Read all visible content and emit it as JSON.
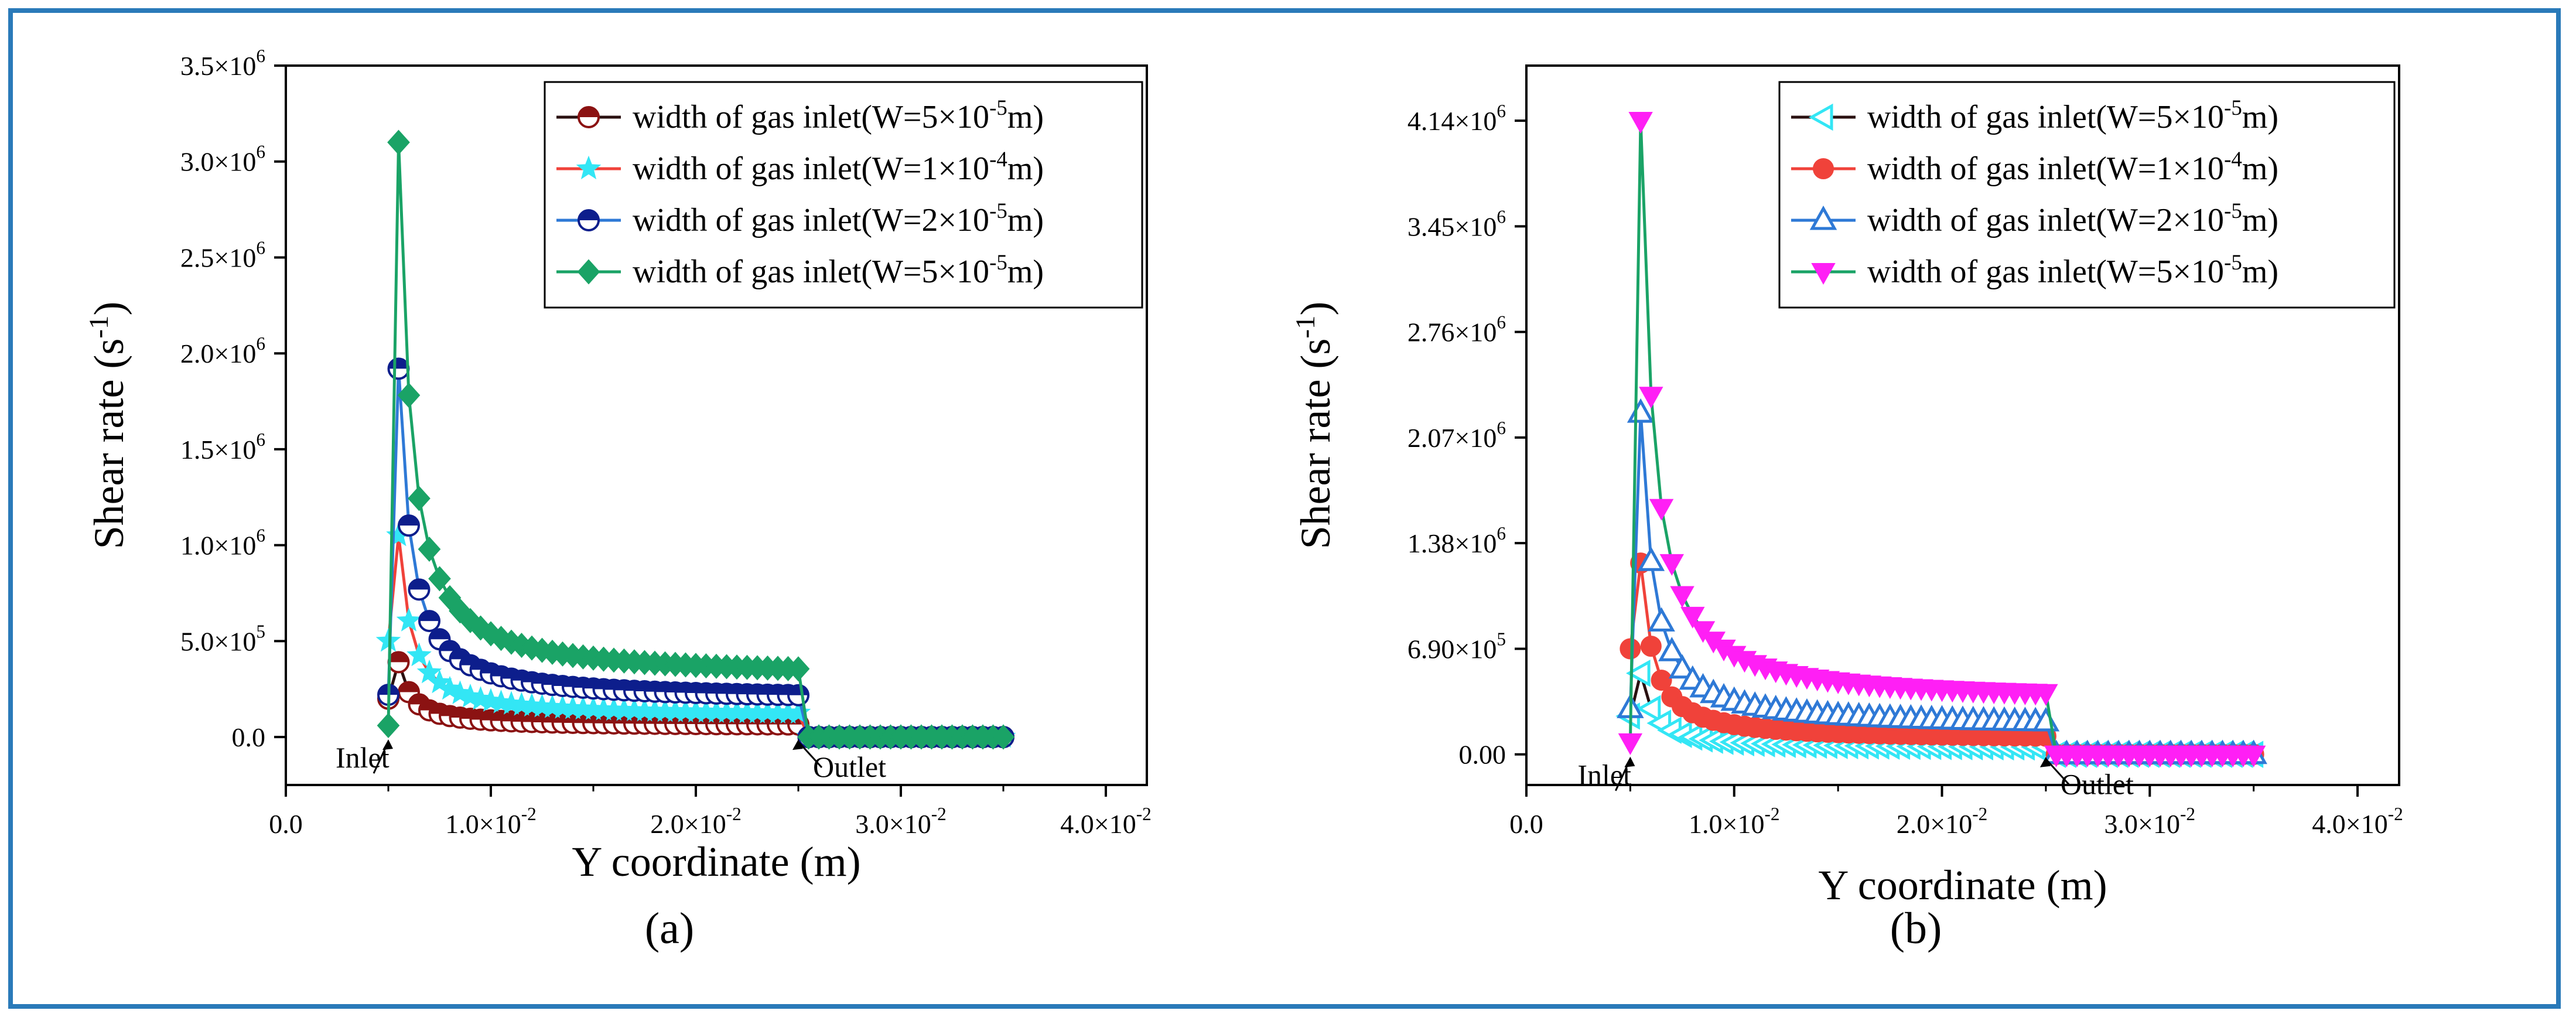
{
  "colors": {
    "frame": "#2a7ab9",
    "darkred": "#8b1212",
    "cyan": "#33e6f5",
    "navy": "#0d1e8c",
    "green": "#1aa366",
    "red": "#f0423a",
    "blue": "#2e79d6",
    "magenta": "#ff1ff5"
  },
  "chart_data": [
    {
      "type": "line",
      "panel_label": "(a)",
      "xlabel": "Y coordinate (m)",
      "ylabel_text": "Shear rate (s",
      "ylabel_sup": "-1",
      "ylabel_close": ")",
      "xlim": [
        0,
        0.042
      ],
      "ylim": [
        -250000,
        3500000
      ],
      "xticks": [
        {
          "value": 0.0,
          "mant": "0.0",
          "exp": ""
        },
        {
          "value": 0.01,
          "mant": "1.0×10",
          "exp": "-2"
        },
        {
          "value": 0.02,
          "mant": "2.0×10",
          "exp": "-2"
        },
        {
          "value": 0.03,
          "mant": "3.0×10",
          "exp": "-2"
        },
        {
          "value": 0.04,
          "mant": "4.0×10",
          "exp": "-2"
        }
      ],
      "yticks": [
        {
          "value": 0,
          "mant": "0.0",
          "exp": ""
        },
        {
          "value": 500000,
          "mant": "5.0×10",
          "exp": "5"
        },
        {
          "value": 1000000,
          "mant": "1.0×10",
          "exp": "6"
        },
        {
          "value": 1500000,
          "mant": "1.5×10",
          "exp": "6"
        },
        {
          "value": 2000000,
          "mant": "2.0×10",
          "exp": "6"
        },
        {
          "value": 2500000,
          "mant": "2.5×10",
          "exp": "6"
        },
        {
          "value": 3000000,
          "mant": "3.0×10",
          "exp": "6"
        },
        {
          "value": 3500000,
          "mant": "3.5×10",
          "exp": "6"
        }
      ],
      "annotations": [
        {
          "label": "Inlet",
          "x": 0.005,
          "y": 0
        },
        {
          "label": "Outlet",
          "x": 0.025,
          "y": 0
        }
      ],
      "legend_position": "top-right",
      "series": [
        {
          "name": "width of gas inlet(W=5×10",
          "exp": "-5",
          "unit": "m)",
          "line_color": "#2a1010",
          "marker_color": "#8b1212",
          "marker": "half-circle",
          "peak_value": 390000,
          "plateau_value": 60000
        },
        {
          "name": "width of gas inlet(W=1×10",
          "exp": "-4",
          "unit": "m)",
          "line_color": "#f0423a",
          "marker_color": "#33e6f5",
          "marker": "star",
          "peak_value": 1050000,
          "plateau_value": 110000
        },
        {
          "name": "width of gas inlet(W=2×10",
          "exp": "-5",
          "unit": "m)",
          "line_color": "#2e79d6",
          "marker_color": "#0d1e8c",
          "marker": "half-circle",
          "peak_value": 1920000,
          "plateau_value": 190000
        },
        {
          "name": "width of gas inlet(W=5×10",
          "exp": "-5",
          "unit": "m)",
          "line_color": "#1aa366",
          "marker_color": "#1aa366",
          "marker": "diamond",
          "peak_value": 3100000,
          "plateau_value": 310000
        }
      ]
    },
    {
      "type": "line",
      "panel_label": "(b)",
      "xlabel": "Y coordinate (m)",
      "ylabel_text": "Shear rate (s",
      "ylabel_sup": "-1",
      "ylabel_close": ")",
      "xlim": [
        0,
        0.042
      ],
      "ylim": [
        -200000,
        4500000
      ],
      "xticks": [
        {
          "value": 0.0,
          "mant": "0.0",
          "exp": ""
        },
        {
          "value": 0.01,
          "mant": "1.0×10",
          "exp": "-2"
        },
        {
          "value": 0.02,
          "mant": "2.0×10",
          "exp": "-2"
        },
        {
          "value": 0.03,
          "mant": "3.0×10",
          "exp": "-2"
        },
        {
          "value": 0.04,
          "mant": "4.0×10",
          "exp": "-2"
        }
      ],
      "yticks": [
        {
          "value": 0,
          "mant": "0.00",
          "exp": ""
        },
        {
          "value": 690000,
          "mant": "6.90×10",
          "exp": "5"
        },
        {
          "value": 1380000,
          "mant": "1.38×10",
          "exp": "6"
        },
        {
          "value": 2070000,
          "mant": "2.07×10",
          "exp": "6"
        },
        {
          "value": 2760000,
          "mant": "2.76×10",
          "exp": "6"
        },
        {
          "value": 3450000,
          "mant": "3.45×10",
          "exp": "6"
        },
        {
          "value": 4140000,
          "mant": "4.14×10",
          "exp": "6"
        }
      ],
      "annotations": [
        {
          "label": "Inlet",
          "x": 0.005,
          "y": 0
        },
        {
          "label": "Outlet",
          "x": 0.025,
          "y": 0
        }
      ],
      "legend_position": "top-right",
      "series": [
        {
          "name": "width of gas inlet(W=5×10",
          "exp": "-5",
          "unit": "m)",
          "line_color": "#2a1010",
          "marker_color": "#33e6f5",
          "marker": "left-triangle",
          "peak_value": 530000,
          "plateau_value": 40000
        },
        {
          "name": "width of gas inlet(W=1×10",
          "exp": "-4",
          "unit": "m)",
          "line_color": "#f0423a",
          "marker_color": "#f0423a",
          "marker": "circle",
          "peak_value": 1250000,
          "plateau_value": 100000
        },
        {
          "name": "width of gas inlet(W=2×10",
          "exp": "-5",
          "unit": "m)",
          "line_color": "#2e79d6",
          "marker_color": "#2e79d6",
          "marker": "up-triangle",
          "peak_value": 2230000,
          "plateau_value": 180000
        },
        {
          "name": "width of gas inlet(W=5×10",
          "exp": "-5",
          "unit": "m)",
          "line_color": "#1aa366",
          "marker_color": "#ff1ff5",
          "marker": "down-triangle",
          "peak_value": 4140000,
          "plateau_value": 340000
        }
      ]
    }
  ]
}
